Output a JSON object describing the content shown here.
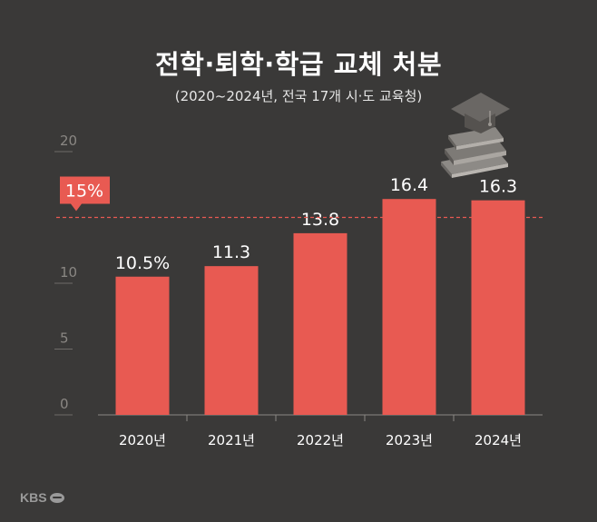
{
  "chart_data": {
    "type": "bar",
    "title": "전학·퇴학·학급 교체 처분",
    "subtitle": "(2020~2024년, 전국 17개 시·도 교육청)",
    "categories": [
      "2020년",
      "2021년",
      "2022년",
      "2023년",
      "2024년"
    ],
    "values": [
      10.5,
      11.3,
      13.8,
      16.4,
      16.3
    ],
    "value_labels": [
      "10.5%",
      "11.3",
      "13.8",
      "16.4",
      "16.3"
    ],
    "y_ticks": [
      0,
      5,
      10,
      20
    ],
    "y_tick_labels": [
      "0",
      "5",
      "10",
      "20"
    ],
    "ylim": [
      0,
      20
    ],
    "reference_line": {
      "value": 15,
      "label": "15%",
      "style": "dashed"
    },
    "grid": false,
    "colors": {
      "bar": "#e85a52",
      "reference": "#e85a52",
      "background": "#3a3938"
    }
  },
  "logo": {
    "text": "KBS"
  }
}
